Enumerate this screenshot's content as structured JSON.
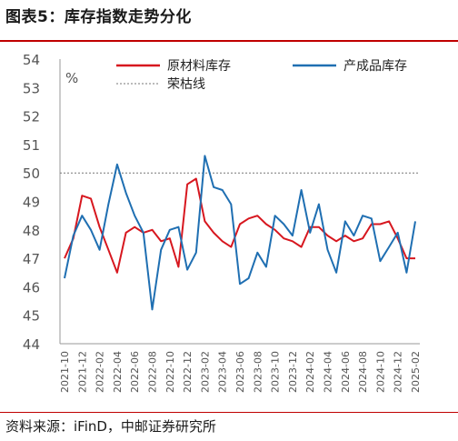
{
  "header": {
    "title": "图表5：库存指数走势分化"
  },
  "footer": {
    "source": "资料来源：iFinD，中邮证券研究所"
  },
  "chart_data": {
    "type": "line",
    "title": "图表5：库存指数走势分化",
    "unit_label": "%",
    "ylim": [
      44,
      54
    ],
    "yticks": [
      44,
      45,
      46,
      47,
      48,
      49,
      50,
      51,
      52,
      53,
      54
    ],
    "reference_line": {
      "name": "荣枯线",
      "value": 50
    },
    "legend_position": "top",
    "x": [
      "2021-10",
      "2021-11",
      "2021-12",
      "2022-01",
      "2022-02",
      "2022-03",
      "2022-04",
      "2022-05",
      "2022-06",
      "2022-07",
      "2022-08",
      "2022-09",
      "2022-10",
      "2022-11",
      "2022-12",
      "2023-01",
      "2023-02",
      "2023-03",
      "2023-04",
      "2023-05",
      "2023-06",
      "2023-07",
      "2023-08",
      "2023-09",
      "2023-10",
      "2023-11",
      "2023-12",
      "2024-01",
      "2024-02",
      "2024-03",
      "2024-04",
      "2024-05",
      "2024-06",
      "2024-07",
      "2024-08",
      "2024-09",
      "2024-10",
      "2024-11",
      "2024-12",
      "2025-01",
      "2025-02"
    ],
    "xtick_labels": [
      "2021-10",
      "2021-12",
      "2022-02",
      "2022-04",
      "2022-06",
      "2022-08",
      "2022-10",
      "2022-12",
      "2023-02",
      "2023-04",
      "2023-06",
      "2023-08",
      "2023-10",
      "2023-12",
      "2024-02",
      "2024-04",
      "2024-06",
      "2024-08",
      "2024-10",
      "2024-12",
      "2025-02"
    ],
    "series": [
      {
        "name": "原材料库存",
        "color": "#d7171f",
        "values": [
          47.0,
          47.7,
          49.2,
          49.1,
          48.1,
          47.3,
          46.5,
          47.9,
          48.1,
          47.9,
          48.0,
          47.6,
          47.7,
          46.7,
          49.6,
          49.8,
          48.3,
          47.9,
          47.6,
          47.4,
          48.2,
          48.4,
          48.5,
          48.2,
          48.0,
          47.7,
          47.6,
          47.4,
          48.1,
          48.1,
          47.8,
          47.6,
          47.8,
          47.6,
          47.7,
          48.2,
          48.2,
          48.3,
          47.7,
          47.0,
          47.0
        ]
      },
      {
        "name": "产成品库存",
        "color": "#1f6fb2",
        "values": [
          46.3,
          47.8,
          48.5,
          48.0,
          47.3,
          48.9,
          50.3,
          49.3,
          48.5,
          47.9,
          45.2,
          47.3,
          48.0,
          48.1,
          46.6,
          47.2,
          50.6,
          49.5,
          49.4,
          48.9,
          46.1,
          46.3,
          47.2,
          46.7,
          48.5,
          48.2,
          47.8,
          49.4,
          47.9,
          48.9,
          47.3,
          46.5,
          48.3,
          47.8,
          48.5,
          48.4,
          46.9,
          47.4,
          47.9,
          46.5,
          48.3
        ]
      }
    ]
  }
}
